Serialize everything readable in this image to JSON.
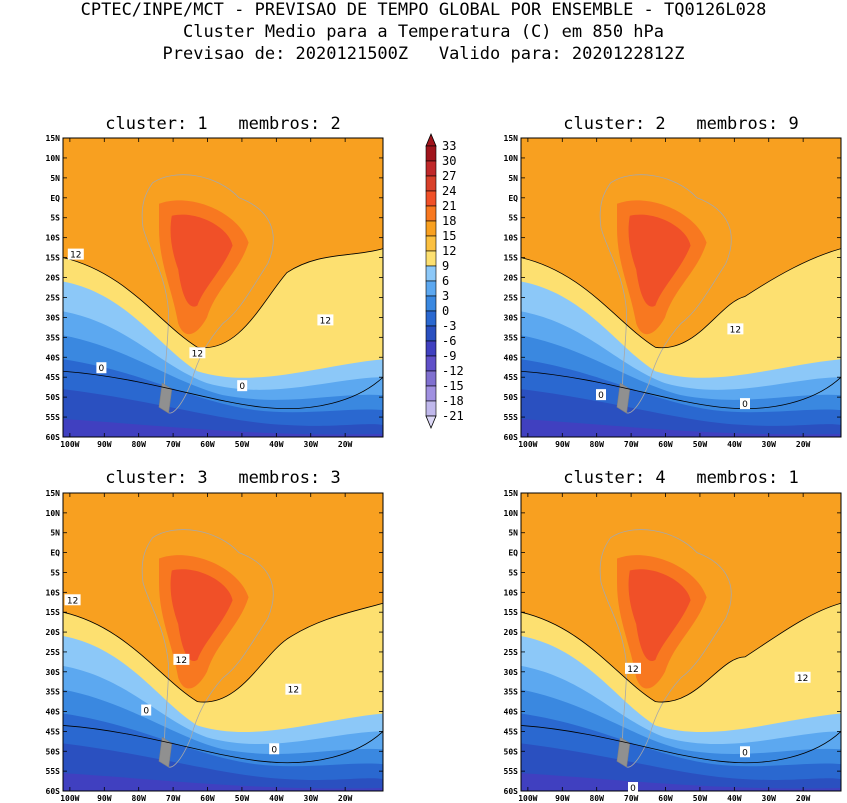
{
  "header": {
    "line1": "CPTEC/INPE/MCT - PREVISAO DE TEMPO GLOBAL POR ENSEMBLE - TQ0126L028",
    "line2": "Cluster Medio para a Temperatura (C) em 850 hPa",
    "line3": "Previsao de: 2020121500Z   Valido para: 2020122812Z"
  },
  "panels": [
    {
      "title": "cluster: 1   membros: 2",
      "contour_labels": [
        "12",
        "12",
        "12",
        "0",
        "0"
      ]
    },
    {
      "title": "cluster: 2   membros: 9",
      "contour_labels": [
        "12",
        "0",
        "0"
      ]
    },
    {
      "title": "cluster: 3   membros: 3",
      "contour_labels": [
        "12",
        "12",
        "12",
        "0",
        "0"
      ]
    },
    {
      "title": "cluster: 4   membros: 1",
      "contour_labels": [
        "12",
        "12",
        "0",
        "0"
      ]
    }
  ],
  "lat_ticks": [
    "15N",
    "10N",
    "5N",
    "EQ",
    "5S",
    "10S",
    "15S",
    "20S",
    "25S",
    "30S",
    "35S",
    "40S",
    "45S",
    "50S",
    "55S",
    "60S"
  ],
  "lon_ticks": [
    "100W",
    "90W",
    "80W",
    "70W",
    "60W",
    "50W",
    "40W",
    "30W",
    "20W"
  ],
  "colorbar": {
    "labels": [
      "33",
      "30",
      "27",
      "24",
      "21",
      "18",
      "15",
      "12",
      "9",
      "6",
      "3",
      "0",
      "-3",
      "-6",
      "-9",
      "-12",
      "-15",
      "-18",
      "-21"
    ],
    "colors": [
      "#a0141c",
      "#c0282a",
      "#d8402a",
      "#f05028",
      "#f87820",
      "#f8a020",
      "#fbc040",
      "#fde070",
      "#8cc8f8",
      "#5ca8f0",
      "#3a88e0",
      "#2a68d0",
      "#2a50c0",
      "#4040c0",
      "#6050c8",
      "#8070d0",
      "#a090e0",
      "#c0b8ec",
      "#dcd8f6"
    ]
  }
}
